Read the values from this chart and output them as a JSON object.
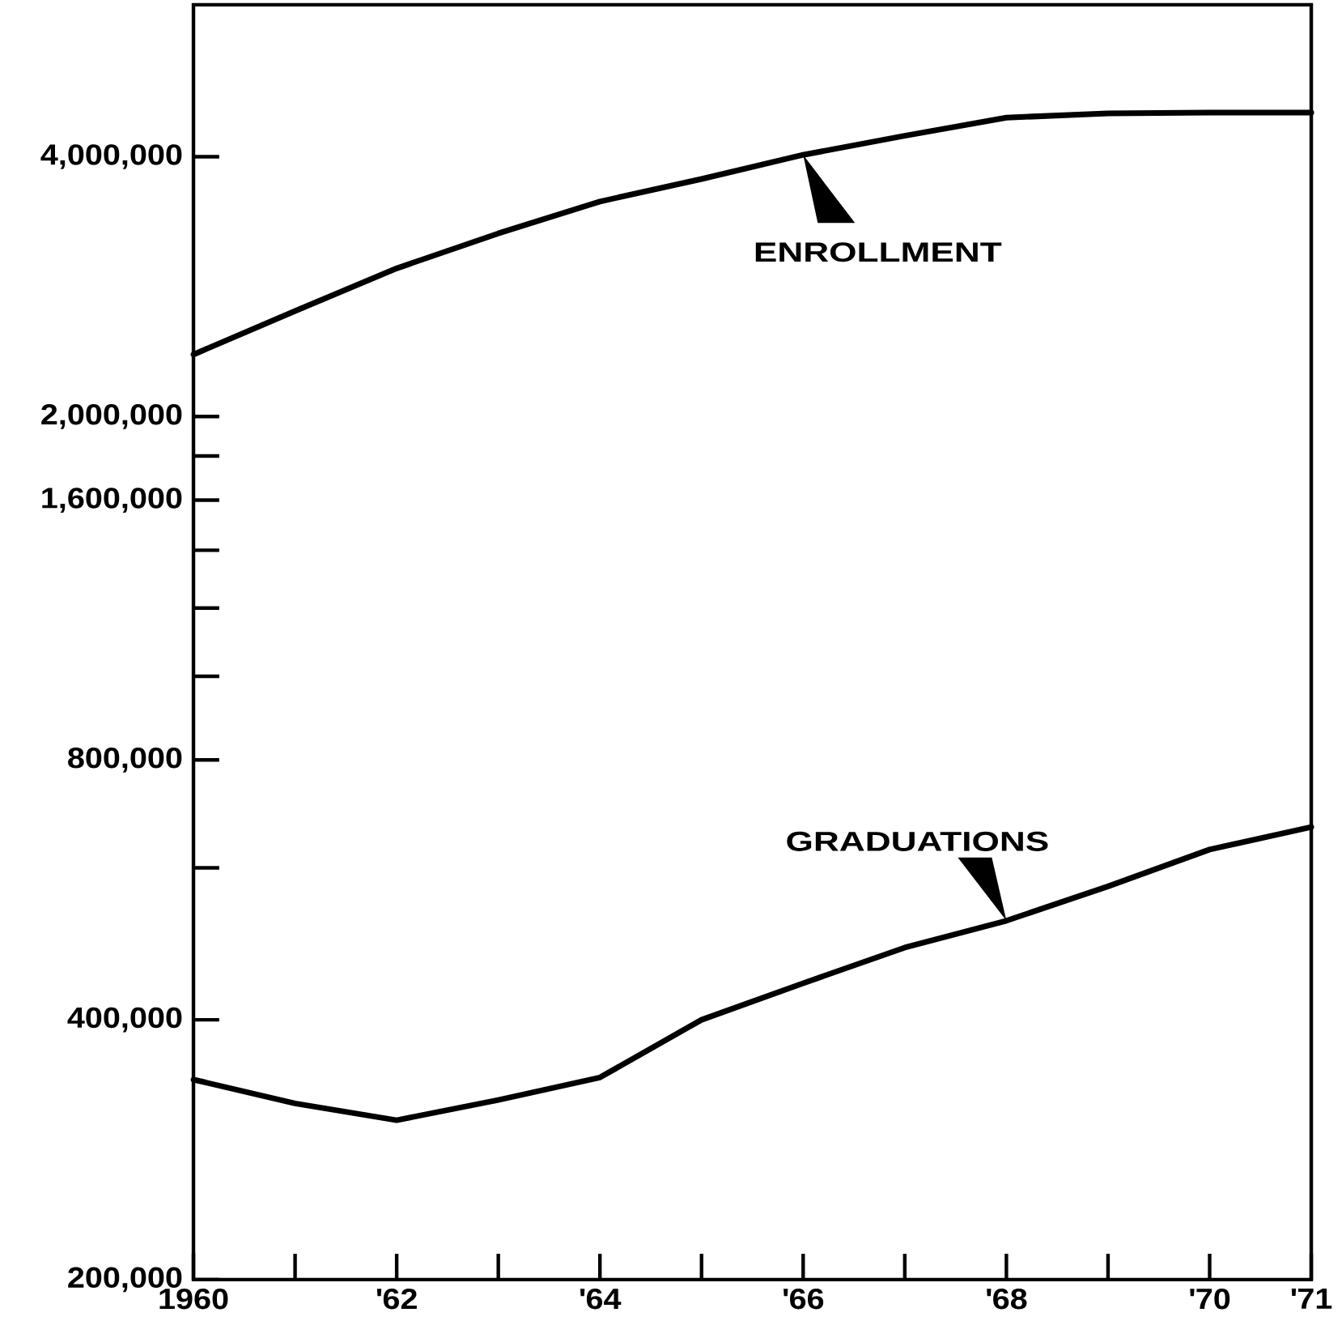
{
  "chart_data": {
    "type": "line",
    "x": [
      1960,
      1961,
      1962,
      1963,
      1964,
      1965,
      1966,
      1967,
      1968,
      1969,
      1970,
      1971
    ],
    "series": [
      {
        "name": "ENROLLMENT",
        "color": "#000000",
        "values": [
          2360000,
          2650000,
          2970000,
          3260000,
          3550000,
          3770000,
          4020000,
          4230000,
          4440000,
          4490000,
          4500000,
          4500000
        ]
      },
      {
        "name": "GRADUATIONS",
        "color": "#000000",
        "values": [
          341000,
          320000,
          306000,
          323000,
          343000,
          400000,
          441000,
          485000,
          521000,
          571000,
          630000,
          669000
        ]
      }
    ],
    "xlim": [
      1960,
      1971
    ],
    "xticks": [
      {
        "value": 1960,
        "label": "1960"
      },
      {
        "value": 1961,
        "label": null
      },
      {
        "value": 1962,
        "label": "'62"
      },
      {
        "value": 1963,
        "label": null
      },
      {
        "value": 1964,
        "label": "'64"
      },
      {
        "value": 1965,
        "label": null
      },
      {
        "value": 1966,
        "label": "'66"
      },
      {
        "value": 1967,
        "label": null
      },
      {
        "value": 1968,
        "label": "'68"
      },
      {
        "value": 1969,
        "label": null
      },
      {
        "value": 1970,
        "label": "'70"
      },
      {
        "value": 1971,
        "label": "'71"
      }
    ],
    "ylim": [
      200000,
      6000000
    ],
    "yticks": [
      {
        "value": 200000,
        "label": "200,000"
      },
      {
        "value": 400000,
        "label": "400,000"
      },
      {
        "value": 600000,
        "label": null
      },
      {
        "value": 800000,
        "label": "800,000"
      },
      {
        "value": 1000000,
        "label": null
      },
      {
        "value": 1200000,
        "label": null
      },
      {
        "value": 1400000,
        "label": null
      },
      {
        "value": 1600000,
        "label": "1,600,000"
      },
      {
        "value": 1800000,
        "label": null
      },
      {
        "value": 2000000,
        "label": "2,000,000"
      },
      {
        "value": 4000000,
        "label": "4,000,000"
      }
    ],
    "log": "y",
    "line_style": "solid"
  }
}
